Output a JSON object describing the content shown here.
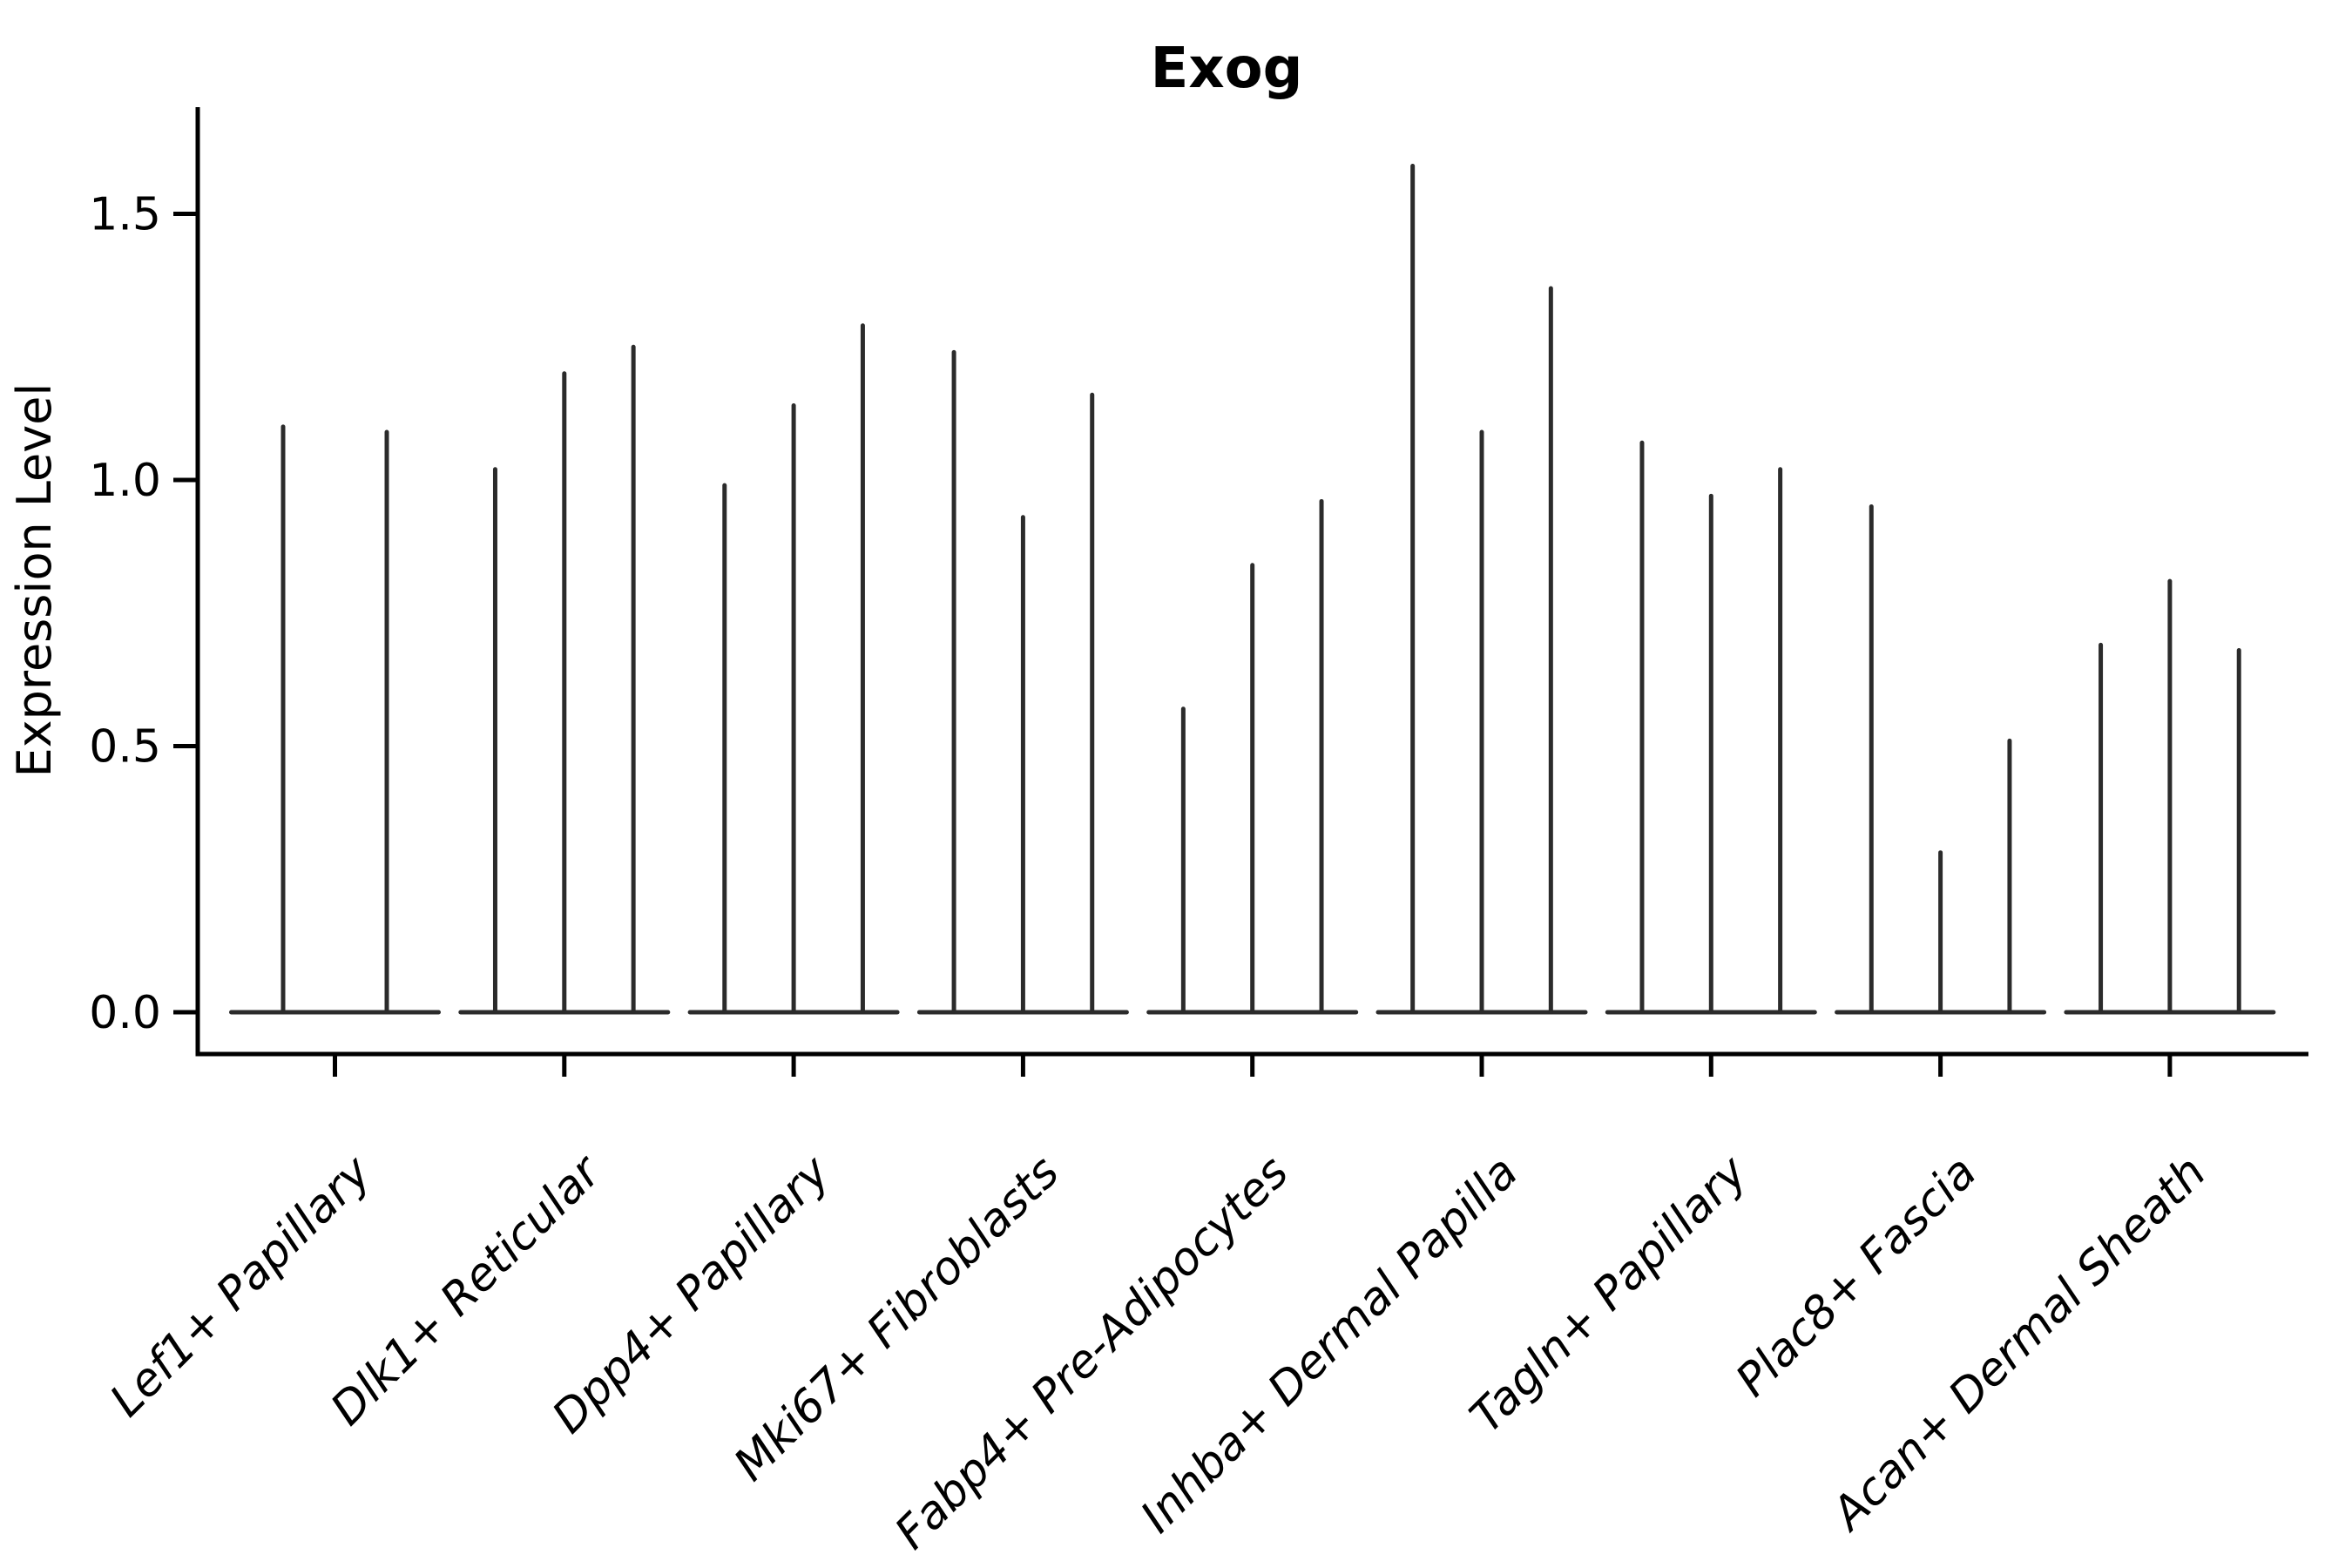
{
  "chart_data": {
    "type": "violin",
    "title": "Exog",
    "xlabel": "",
    "ylabel": "Expression Level",
    "ylim": [
      -0.08,
      1.7
    ],
    "ytick_labels": [
      "0.0",
      "0.5",
      "1.0",
      "1.5"
    ],
    "ytick_values": [
      0.0,
      0.5,
      1.0,
      1.5
    ],
    "grid": false,
    "legend_position": "none",
    "style_note": "Seurat-style stacked violin: each violin is a near-zero-width vertical spike rising from a wide flat base at expression 0 (sparse single-cell expression); drawn in dark charcoal on white",
    "categories": [
      "Lef1+ Papillary",
      "Dlk1+ Reticular",
      "Dpp4+ Papillary",
      "Mki67+ Fibroblasts",
      "Fabp4+ Pre-Adipocytes",
      "Inhba+ Dermal Papilla",
      "Tagln+ Papillary",
      "Plac8+ Fascia",
      "Acan+ Dermal Sheath"
    ],
    "series": [
      {
        "category": "Lef1+ Papillary",
        "spike_peaks": [
          1.1,
          1.09
        ]
      },
      {
        "category": "Dlk1+ Reticular",
        "spike_peaks": [
          1.02,
          1.2,
          1.25
        ]
      },
      {
        "category": "Dpp4+ Papillary",
        "spike_peaks": [
          0.99,
          1.14,
          1.29
        ]
      },
      {
        "category": "Mki67+ Fibroblasts",
        "spike_peaks": [
          1.24,
          0.93,
          1.16
        ]
      },
      {
        "category": "Fabp4+ Pre-Adipocytes",
        "spike_peaks": [
          0.57,
          0.84,
          0.96
        ]
      },
      {
        "category": "Inhba+ Dermal Papilla",
        "spike_peaks": [
          1.59,
          1.09,
          1.36
        ]
      },
      {
        "category": "Tagln+ Papillary",
        "spike_peaks": [
          1.07,
          0.97,
          1.02
        ]
      },
      {
        "category": "Plac8+ Fascia",
        "spike_peaks": [
          0.95,
          0.3,
          0.51
        ]
      },
      {
        "category": "Acan+ Dermal Sheath",
        "spike_peaks": [
          0.69,
          0.81,
          0.68
        ]
      }
    ],
    "colors": {
      "violin": "#2b2b2b",
      "axis": "#000000",
      "background": "#ffffff"
    }
  }
}
